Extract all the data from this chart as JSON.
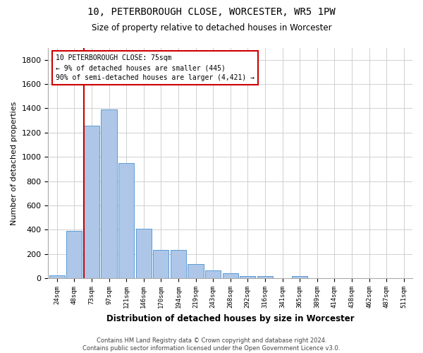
{
  "title_line1": "10, PETERBOROUGH CLOSE, WORCESTER, WR5 1PW",
  "title_line2": "Size of property relative to detached houses in Worcester",
  "xlabel": "Distribution of detached houses by size in Worcester",
  "ylabel": "Number of detached properties",
  "categories": [
    "24sqm",
    "48sqm",
    "73sqm",
    "97sqm",
    "121sqm",
    "146sqm",
    "170sqm",
    "194sqm",
    "219sqm",
    "243sqm",
    "268sqm",
    "292sqm",
    "316sqm",
    "341sqm",
    "365sqm",
    "389sqm",
    "414sqm",
    "438sqm",
    "462sqm",
    "487sqm",
    "511sqm"
  ],
  "values": [
    25,
    390,
    1260,
    1390,
    950,
    410,
    235,
    235,
    115,
    65,
    40,
    18,
    18,
    4,
    18,
    0,
    0,
    0,
    0,
    0,
    0
  ],
  "bar_color": "#aec6e8",
  "bar_edge_color": "#5b9bd5",
  "vline_x_index": 2,
  "vline_color": "#cc0000",
  "annotation_line1": "10 PETERBOROUGH CLOSE: 75sqm",
  "annotation_line2": "← 9% of detached houses are smaller (445)",
  "annotation_line3": "90% of semi-detached houses are larger (4,421) →",
  "annotation_box_color": "#cc0000",
  "ylim": [
    0,
    1900
  ],
  "yticks": [
    0,
    200,
    400,
    600,
    800,
    1000,
    1200,
    1400,
    1600,
    1800
  ],
  "footer_line1": "Contains HM Land Registry data © Crown copyright and database right 2024.",
  "footer_line2": "Contains public sector information licensed under the Open Government Licence v3.0.",
  "background_color": "#ffffff",
  "grid_color": "#d0d0d0"
}
